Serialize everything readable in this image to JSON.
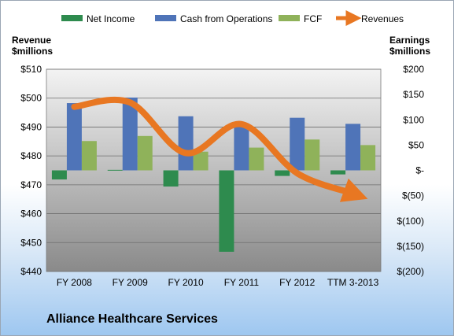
{
  "chart_data": {
    "type": "bar",
    "title": "",
    "footer": "Alliance Healthcare Services",
    "categories": [
      "FY 2008",
      "FY 2009",
      "FY 2010",
      "FY 2011",
      "FY 2012",
      "TTM 3-2013"
    ],
    "left_axis": {
      "title_lines": [
        "Revenue",
        "$millions"
      ],
      "range": [
        440,
        510
      ],
      "ticks": [
        510,
        500,
        490,
        480,
        470,
        460,
        450,
        440
      ],
      "tick_labels": [
        "$510",
        "$500",
        "$490",
        "$480",
        "$470",
        "$460",
        "$450",
        "$440"
      ]
    },
    "right_axis": {
      "title_lines": [
        "Earnings",
        "$millions"
      ],
      "range": [
        -200,
        200
      ],
      "ticks": [
        200,
        150,
        100,
        50,
        0,
        -50,
        -100,
        -150,
        -200
      ],
      "tick_labels": [
        "$200",
        "$150",
        "$100",
        "$50",
        "$-",
        "$(50)",
        "$(100)",
        "$(150)",
        "$(200)"
      ]
    },
    "series": [
      {
        "name": "Net Income",
        "type": "bar",
        "axis": "right",
        "color": "#2e8b4e",
        "values": [
          -18,
          1,
          -32,
          -161,
          -11,
          -8
        ]
      },
      {
        "name": "Cash from Operations",
        "type": "bar",
        "axis": "right",
        "color": "#4f74b8",
        "values": [
          133,
          144,
          107,
          93,
          104,
          92
        ]
      },
      {
        "name": "FCF",
        "type": "bar",
        "axis": "right",
        "color": "#8fb25a",
        "values": [
          58,
          68,
          37,
          45,
          61,
          50
        ]
      },
      {
        "name": "Revenues",
        "type": "line",
        "axis": "left",
        "color": "#e87722",
        "values": [
          497,
          498.5,
          481,
          491,
          474,
          467
        ]
      }
    ],
    "grid": true,
    "legend": "top"
  }
}
